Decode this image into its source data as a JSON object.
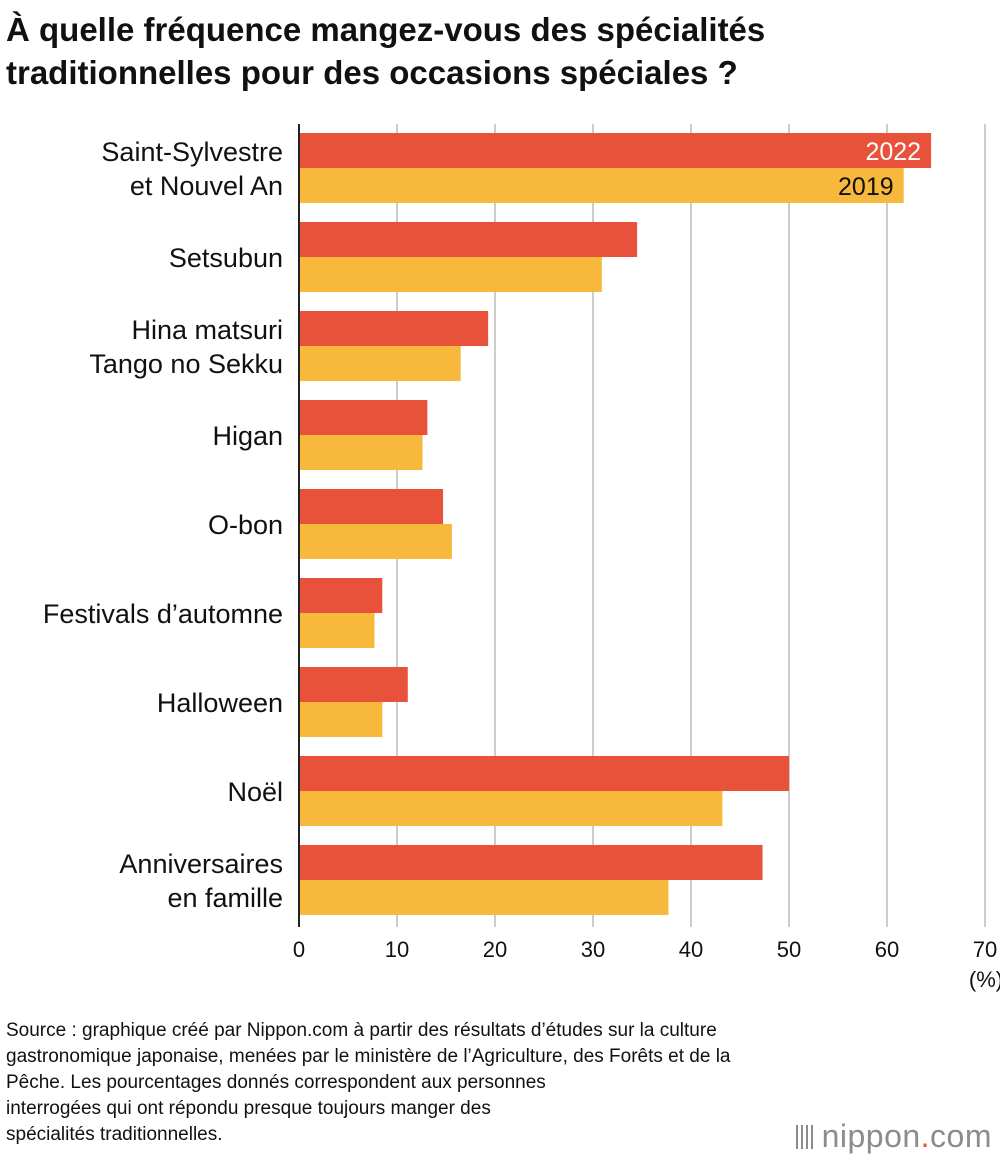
{
  "title_lines": [
    "À quelle fréquence mangez-vous des spécialités",
    "traditionnelles pour des occasions spéciales ?"
  ],
  "colors": {
    "s2022": "#e8523a",
    "s2019": "#f7b83c",
    "grid": "#cccccc",
    "axis": "#222222"
  },
  "chart_data": {
    "type": "bar",
    "orientation": "horizontal",
    "categories": [
      [
        "Saint-Sylvestre",
        "et Nouvel An"
      ],
      [
        "Setsubun"
      ],
      [
        "Hina matsuri",
        "Tango no Sekku"
      ],
      [
        "Higan"
      ],
      [
        "O-bon"
      ],
      [
        "Festivals d’automne"
      ],
      [
        "Halloween"
      ],
      [
        "Noël"
      ],
      [
        "Anniversaires",
        "en famille"
      ]
    ],
    "series": [
      {
        "name": "2022",
        "values": [
          64.5,
          34.5,
          19.3,
          13.1,
          14.7,
          8.5,
          11.1,
          50.0,
          47.3
        ]
      },
      {
        "name": "2019",
        "values": [
          61.7,
          30.9,
          16.5,
          12.6,
          15.6,
          7.7,
          8.5,
          43.2,
          37.7
        ]
      }
    ],
    "x_ticks": [
      "0",
      "10",
      "20",
      "30",
      "40",
      "50",
      "60",
      "70"
    ],
    "xlim": [
      0,
      70
    ],
    "x_unit": "(%)",
    "grid": true
  },
  "source_lines": [
    "Source : graphique créé par Nippon.com à partir des résultats d’études sur la culture",
    "gastronomique japonaise, menées par le ministère de l’Agriculture, des Forêts et de la",
    "Pêche. Les pourcentages donnés correspondent aux personnes",
    "interrogées qui ont répondu presque toujours manger des",
    "spécialités traditionnelles."
  ],
  "logo": {
    "name": "nippon",
    "dot": ".",
    "tld": "com"
  }
}
